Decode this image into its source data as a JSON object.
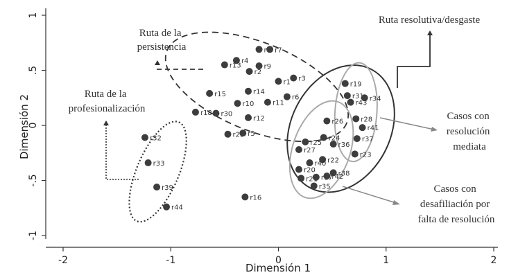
{
  "chart_data": {
    "type": "scatter",
    "title": "",
    "xlabel": "Dimensión 1",
    "ylabel": "Dimensión 2",
    "xlim": [
      -2,
      2
    ],
    "ylim": [
      -1,
      1
    ],
    "x_ticks": [
      {
        "value": -2,
        "label": "-2"
      },
      {
        "value": -1,
        "label": "-1"
      },
      {
        "value": 0,
        "label": "0"
      },
      {
        "value": 1,
        "label": "1"
      },
      {
        "value": 2,
        "label": "2"
      }
    ],
    "y_ticks": [
      {
        "value": 1,
        "label": "1"
      },
      {
        "value": 0.5,
        "label": ".5"
      },
      {
        "value": 0,
        "label": "0"
      },
      {
        "value": -0.5,
        "label": "-.5"
      },
      {
        "value": -1,
        "label": "-1"
      }
    ],
    "points": [
      {
        "label": "r8",
        "x": -0.18,
        "y": 0.69
      },
      {
        "label": "r7",
        "x": -0.08,
        "y": 0.69
      },
      {
        "label": "r4",
        "x": -0.39,
        "y": 0.59
      },
      {
        "label": "r13",
        "x": -0.5,
        "y": 0.55
      },
      {
        "label": "r9",
        "x": -0.18,
        "y": 0.54
      },
      {
        "label": "r2",
        "x": -0.27,
        "y": 0.49
      },
      {
        "label": "r1",
        "x": 0.0,
        "y": 0.4
      },
      {
        "label": "r3",
        "x": 0.14,
        "y": 0.43
      },
      {
        "label": "r15",
        "x": -0.64,
        "y": 0.29
      },
      {
        "label": "r14",
        "x": -0.28,
        "y": 0.31
      },
      {
        "label": "r6",
        "x": 0.08,
        "y": 0.26
      },
      {
        "label": "r10",
        "x": -0.38,
        "y": 0.2
      },
      {
        "label": "r11",
        "x": -0.1,
        "y": 0.21
      },
      {
        "label": "r18",
        "x": -0.77,
        "y": 0.12
      },
      {
        "label": "r30",
        "x": -0.58,
        "y": 0.11
      },
      {
        "label": "r12",
        "x": -0.28,
        "y": 0.07
      },
      {
        "label": "r29",
        "x": -0.47,
        "y": -0.08
      },
      {
        "label": "r5",
        "x": -0.33,
        "y": -0.07
      },
      {
        "label": "r16",
        "x": -0.31,
        "y": -0.65
      },
      {
        "label": "r32",
        "x": -1.24,
        "y": -0.11
      },
      {
        "label": "r33",
        "x": -1.21,
        "y": -0.34
      },
      {
        "label": "r39",
        "x": -1.13,
        "y": -0.56
      },
      {
        "label": "r44",
        "x": -1.04,
        "y": -0.74
      },
      {
        "label": "r19",
        "x": 0.62,
        "y": 0.38
      },
      {
        "label": "r31",
        "x": 0.64,
        "y": 0.27
      },
      {
        "label": "r34",
        "x": 0.8,
        "y": 0.25
      },
      {
        "label": "r43",
        "x": 0.67,
        "y": 0.21
      },
      {
        "label": "r28",
        "x": 0.72,
        "y": 0.06
      },
      {
        "label": "r41",
        "x": 0.78,
        "y": -0.02
      },
      {
        "label": "r37",
        "x": 0.73,
        "y": -0.12
      },
      {
        "label": "r23",
        "x": 0.71,
        "y": -0.26
      },
      {
        "label": "r26",
        "x": 0.45,
        "y": 0.04
      },
      {
        "label": "r25",
        "x": 0.25,
        "y": -0.15
      },
      {
        "label": "r24",
        "x": 0.42,
        "y": -0.11
      },
      {
        "label": "r36",
        "x": 0.51,
        "y": -0.17
      },
      {
        "label": "r27",
        "x": 0.19,
        "y": -0.22
      },
      {
        "label": "r22",
        "x": 0.41,
        "y": -0.31
      },
      {
        "label": "r40",
        "x": 0.29,
        "y": -0.34
      },
      {
        "label": "r20",
        "x": 0.19,
        "y": -0.4
      },
      {
        "label": "r21",
        "x": 0.21,
        "y": -0.48
      },
      {
        "label": "r17",
        "x": 0.35,
        "y": -0.47
      },
      {
        "label": "r42",
        "x": 0.45,
        "y": -0.46
      },
      {
        "label": "r38",
        "x": 0.51,
        "y": -0.43
      },
      {
        "label": "r35",
        "x": 0.33,
        "y": -0.55
      }
    ],
    "groups": [
      {
        "name": "Ruta de la persistencia",
        "cx": -0.2,
        "cy": 0.35,
        "rx": 0.9,
        "ry": 0.4,
        "angle": 22,
        "stroke": "#333333",
        "dash": "9,6",
        "width": 1.8
      },
      {
        "name": "Ruta de la profesionalización",
        "cx": -1.12,
        "cy": -0.42,
        "rx": 0.5,
        "ry": 0.19,
        "angle": -67,
        "stroke": "#333333",
        "dash": "2,3",
        "width": 2.2
      },
      {
        "name": "Ruta resolutiva/desgaste",
        "cx": 0.58,
        "cy": -0.03,
        "rx": 0.62,
        "ry": 0.45,
        "angle": -63,
        "stroke": "#333333",
        "dash": "",
        "width": 2
      },
      {
        "name": "Casos con resolución mediata",
        "cx": 0.72,
        "cy": 0.12,
        "rx": 0.46,
        "ry": 0.19,
        "angle": -86,
        "stroke": "#aaaaaa",
        "dash": "",
        "width": 2
      },
      {
        "name": "Casos con desafiliación por falta de resolución",
        "cx": 0.4,
        "cy": -0.22,
        "rx": 0.47,
        "ry": 0.26,
        "angle": -71,
        "stroke": "#aaaaaa",
        "dash": "",
        "width": 2
      }
    ],
    "annotations": {
      "persistencia": [
        "Ruta de la",
        "persistencia"
      ],
      "profesionalizacion": [
        "Ruta de la",
        "profesionalización"
      ],
      "resolutiva": [
        "Ruta resolutiva/desgaste"
      ],
      "mediata": [
        "Casos con",
        "resolución",
        "mediata"
      ],
      "desafiliacion": [
        "Casos con",
        "desafiliación por",
        "falta de resolución"
      ]
    },
    "point_color": "#3d3d3d",
    "grid": false,
    "legend": "none"
  }
}
